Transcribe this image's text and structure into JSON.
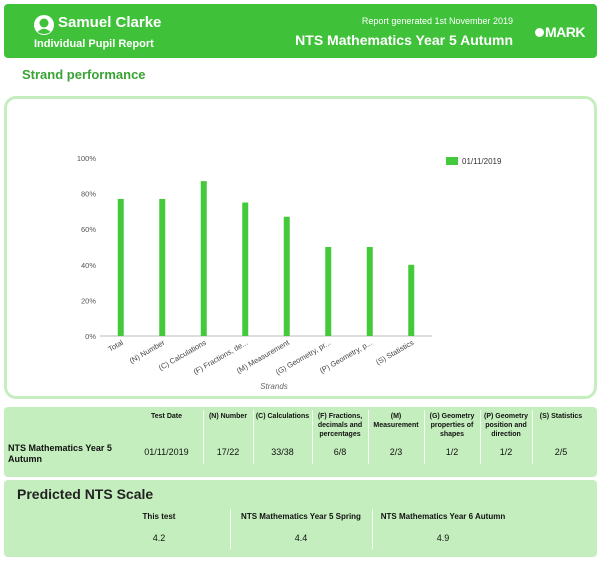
{
  "header": {
    "pupil_name": "Samuel Clarke",
    "report_type": "Individual Pupil Report",
    "generated": "Report generated 1st November 2019",
    "test_title": "NTS Mathematics Year 5 Autumn",
    "logo": "MARK",
    "accent": "#3fc23a"
  },
  "section_title": "Strand performance",
  "chart_data": {
    "type": "bar",
    "categories": [
      "Total",
      "(N) Number",
      "(C) Calculations",
      "(F) Fractions, de...",
      "(M) Measurement",
      "(G) Geometry, pr...",
      "(P) Geometry, p...",
      "(S) Statistics"
    ],
    "series": [
      {
        "name": "01/11/2019",
        "values": [
          77,
          77,
          87,
          75,
          67,
          50,
          50,
          40
        ],
        "color": "#44c93a"
      }
    ],
    "ylim": [
      0,
      100
    ],
    "yticks": [
      "0%",
      "20%",
      "40%",
      "60%",
      "80%",
      "100%"
    ],
    "xlabel": "Strands",
    "ylabel": "",
    "legend": "top-right",
    "grid": false
  },
  "results_table": {
    "row_label": "NTS Mathematics Year 5 Autumn",
    "columns": [
      {
        "header": "Test Date",
        "value": "01/11/2019"
      },
      {
        "header": "(N) Number",
        "value": "17/22"
      },
      {
        "header": "(C) Calculations",
        "value": "33/38"
      },
      {
        "header": "(F) Fractions, decimals and percentages",
        "value": "6/8"
      },
      {
        "header": "(M) Measurement",
        "value": "2/3"
      },
      {
        "header": "(G) Geometry properties of shapes",
        "value": "1/2"
      },
      {
        "header": "(P) Geometry position and direction",
        "value": "1/2"
      },
      {
        "header": "(S) Statistics",
        "value": "2/5"
      }
    ]
  },
  "predicted": {
    "title": "Predicted NTS Scale",
    "columns": [
      {
        "header": "This test",
        "value": "4.2"
      },
      {
        "header": "NTS Mathematics Year 5 Spring",
        "value": "4.4"
      },
      {
        "header": "NTS Mathematics Year 6 Autumn",
        "value": "4.9"
      }
    ]
  }
}
